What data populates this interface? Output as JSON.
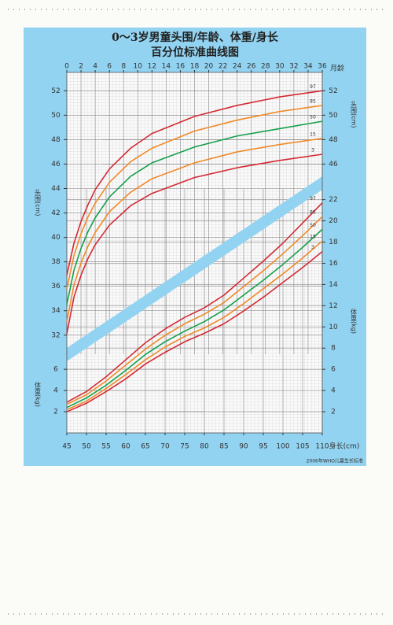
{
  "chart_data": [
    {
      "type": "line",
      "title": "0～3岁男童头围/年龄、体重/身长",
      "subtitle": "百分位标准曲线图",
      "x_label": "月龄",
      "y_label": "头围(cm)",
      "x": [
        0,
        1,
        2,
        3,
        4,
        6,
        9,
        12,
        18,
        24,
        30,
        36
      ],
      "xlim": [
        0,
        36
      ],
      "xticks": [
        0,
        2,
        4,
        6,
        8,
        10,
        12,
        14,
        16,
        18,
        20,
        22,
        24,
        26,
        28,
        30,
        32,
        34,
        36
      ],
      "ylim": [
        24,
        53.5
      ],
      "yticks": [
        32,
        34,
        36,
        38,
        40,
        42,
        44,
        46,
        48,
        50,
        52
      ],
      "y2lim": [
        24,
        53.5
      ],
      "y2ticks": [
        46,
        48,
        50,
        52
      ],
      "grid": true,
      "series": [
        {
          "name": "97",
          "color": "#d42a34",
          "values": [
            36.9,
            39.5,
            41.3,
            42.7,
            43.9,
            45.6,
            47.3,
            48.5,
            49.9,
            50.8,
            51.5,
            52.0
          ]
        },
        {
          "name": "85",
          "color": "#f08a2a",
          "values": [
            35.8,
            38.5,
            40.3,
            41.7,
            42.8,
            44.5,
            46.2,
            47.3,
            48.7,
            49.6,
            50.3,
            50.8
          ]
        },
        {
          "name": "50",
          "color": "#16a04c",
          "values": [
            34.5,
            37.3,
            39.1,
            40.5,
            41.6,
            43.3,
            45.0,
            46.1,
            47.4,
            48.3,
            48.9,
            49.5
          ]
        },
        {
          "name": "15",
          "color": "#f08a2a",
          "values": [
            33.1,
            36.1,
            37.9,
            39.3,
            40.4,
            42.1,
            43.7,
            44.8,
            46.1,
            47.0,
            47.6,
            48.1
          ]
        },
        {
          "name": "3",
          "color": "#d42a34",
          "values": [
            32.1,
            35.1,
            36.9,
            38.3,
            39.4,
            41.0,
            42.6,
            43.6,
            44.9,
            45.7,
            46.3,
            46.8
          ]
        }
      ]
    },
    {
      "type": "line",
      "x_label": "身长(cm)",
      "y_label": "体重(kg)",
      "note": "2006年WHO儿童生长标准",
      "x": [
        45,
        50,
        55,
        60,
        65,
        70,
        75,
        80,
        85,
        90,
        95,
        100,
        105,
        110
      ],
      "xlim": [
        45,
        110
      ],
      "xticks": [
        45,
        50,
        55,
        60,
        65,
        70,
        75,
        80,
        85,
        90,
        95,
        100,
        105,
        110
      ],
      "ylim": [
        0,
        34
      ],
      "yticks": [
        2,
        4,
        6
      ],
      "y2lim": [
        0,
        34
      ],
      "y2ticks": [
        2,
        4,
        6,
        8,
        10,
        12,
        14,
        16,
        18,
        20,
        22
      ],
      "grid": true,
      "series": [
        {
          "name": "97",
          "color": "#d42a34",
          "values": [
            2.9,
            3.9,
            5.3,
            6.9,
            8.5,
            9.8,
            10.9,
            11.8,
            13.0,
            14.6,
            16.2,
            17.9,
            19.8,
            21.7
          ]
        },
        {
          "name": "85",
          "color": "#f08a2a",
          "values": [
            2.7,
            3.6,
            4.9,
            6.4,
            7.9,
            9.2,
            10.3,
            11.2,
            12.3,
            13.8,
            15.3,
            16.9,
            18.6,
            20.4
          ]
        },
        {
          "name": "50",
          "color": "#16a04c",
          "values": [
            2.4,
            3.3,
            4.5,
            5.9,
            7.4,
            8.6,
            9.6,
            10.5,
            11.6,
            13.0,
            14.4,
            15.9,
            17.5,
            19.2
          ]
        },
        {
          "name": "15",
          "color": "#f08a2a",
          "values": [
            2.2,
            3.0,
            4.2,
            5.5,
            6.9,
            8.1,
            9.1,
            9.9,
            10.9,
            12.2,
            13.6,
            15.0,
            16.5,
            18.1
          ]
        },
        {
          "name": "3",
          "color": "#d42a34",
          "values": [
            2.0,
            2.8,
            3.9,
            5.1,
            6.5,
            7.6,
            8.6,
            9.4,
            10.3,
            11.5,
            12.8,
            14.2,
            15.6,
            17.1
          ]
        }
      ]
    }
  ]
}
